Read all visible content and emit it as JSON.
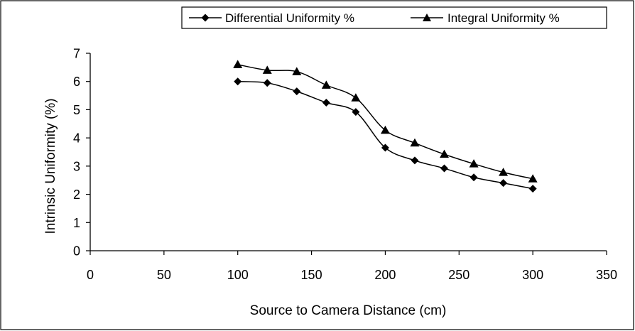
{
  "chart_data": {
    "type": "line",
    "title": "",
    "xlabel": "Source to Camera Distance (cm)",
    "ylabel": "Intrinsic Uniformity (%)",
    "xlim": [
      0,
      350
    ],
    "ylim": [
      0,
      7
    ],
    "x_ticks": [
      0,
      50,
      100,
      150,
      200,
      250,
      300,
      350
    ],
    "y_ticks": [
      0,
      1,
      2,
      3,
      4,
      5,
      6,
      7
    ],
    "x_tick_labels": [
      "0",
      "50",
      "100",
      "150",
      "200",
      "250",
      "300",
      "350"
    ],
    "y_tick_labels": [
      "0",
      "1",
      "2",
      "3",
      "4",
      "5",
      "6",
      "7"
    ],
    "grid": false,
    "legend_position": "top-right",
    "x": [
      100,
      120,
      140,
      160,
      180,
      200,
      220,
      240,
      260,
      280,
      300
    ],
    "series": [
      {
        "name": "Differential Uniformity %",
        "marker": "diamond",
        "values": [
          6.0,
          5.95,
          5.65,
          5.25,
          4.92,
          3.65,
          3.2,
          2.92,
          2.6,
          2.4,
          2.2
        ]
      },
      {
        "name": "Integral Uniformity %",
        "marker": "triangle",
        "values": [
          6.6,
          6.4,
          6.35,
          5.87,
          5.42,
          4.27,
          3.82,
          3.42,
          3.08,
          2.78,
          2.55
        ]
      }
    ],
    "colors": {
      "line": "#000000",
      "background": "#ffffff"
    }
  }
}
